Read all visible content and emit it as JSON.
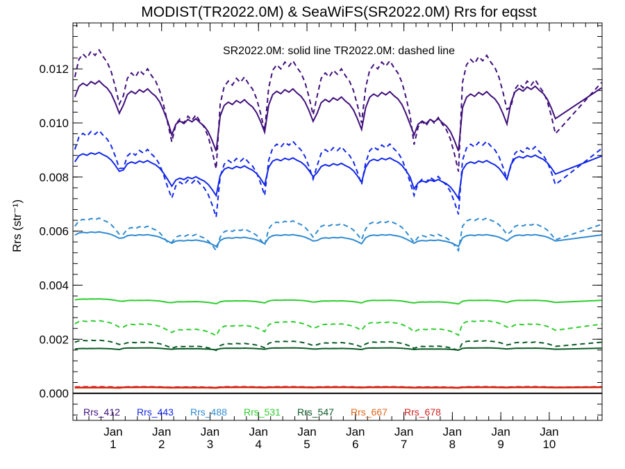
{
  "chart_data": {
    "type": "line",
    "title": "MODIST(TR2022.0M) & SeaWiFS(SR2022.0M)  Rrs for eqsst",
    "annotation": "SR2022.0M: solid line   TR2022.0M: dashed line",
    "ylabel": "Rrs (str⁻¹)",
    "ylim": [
      -0.001,
      0.0137
    ],
    "yticks": [
      "0.000",
      "0.002",
      "0.004",
      "0.006",
      "0.008",
      "0.010",
      "0.012"
    ],
    "ytick_values": [
      0.0,
      0.002,
      0.004,
      0.006,
      0.008,
      0.01,
      0.012
    ],
    "xlim": [
      0,
      10.92
    ],
    "xtick_top": [
      "Jan",
      "Jan",
      "Jan",
      "Jan",
      "Jan",
      "Jan",
      "Jan",
      "Jan",
      "Jan",
      "Jan"
    ],
    "xtick_bottom": [
      "1",
      "2",
      "3",
      "4",
      "5",
      "6",
      "7",
      "8",
      "9",
      "10"
    ],
    "xtick_values": [
      0.83,
      1.83,
      2.83,
      3.83,
      4.83,
      5.83,
      6.83,
      7.83,
      8.83,
      9.83
    ],
    "zero_line": 0.0,
    "line_styles": {
      "SR2022.0M": "solid",
      "TR2022.0M": "dashed"
    },
    "series": [
      {
        "name": "Rrs_412",
        "color": "#3f0f7a",
        "solid_values": [
          0.0112,
          0.0109,
          0.0098,
          0.0105,
          0.0109,
          0.0106,
          0.0108,
          0.0098,
          0.0108,
          0.011
        ],
        "dashed_values": [
          0.0121,
          0.0114,
          0.0097,
          0.0111,
          0.0117,
          0.0114,
          0.0117,
          0.0096,
          0.0119,
          0.011
        ]
      },
      {
        "name": "Rrs_443",
        "color": "#1126e8",
        "solid_values": [
          0.0087,
          0.0084,
          0.0078,
          0.0082,
          0.0085,
          0.0083,
          0.0085,
          0.0077,
          0.0084,
          0.0086
        ],
        "dashed_values": [
          0.0093,
          0.0086,
          0.0075,
          0.0083,
          0.0089,
          0.0087,
          0.0088,
          0.0076,
          0.0089,
          0.0087
        ]
      },
      {
        "name": "Rrs_488",
        "color": "#2f8ad0",
        "solid_values": [
          0.0059,
          0.0058,
          0.0056,
          0.0057,
          0.0058,
          0.0057,
          0.0058,
          0.0056,
          0.0058,
          0.0058
        ],
        "dashed_values": [
          0.0063,
          0.006,
          0.0057,
          0.0059,
          0.0062,
          0.0061,
          0.0062,
          0.0057,
          0.0063,
          0.0061
        ]
      },
      {
        "name": "Rrs_531",
        "color": "#2fcc2f",
        "solid_values": [
          0.00347,
          0.00342,
          0.00337,
          0.0034,
          0.00343,
          0.0034,
          0.00342,
          0.00336,
          0.00342,
          0.00342
        ],
        "dashed_values": [
          0.00262,
          0.0025,
          0.0023,
          0.00245,
          0.00258,
          0.0025,
          0.00257,
          0.00232,
          0.00262,
          0.0025
        ]
      },
      {
        "name": "Rrs_547",
        "color": "#0b5a26",
        "solid_values": [
          0.00165,
          0.00167,
          0.00164,
          0.00166,
          0.00167,
          0.00165,
          0.00167,
          0.00163,
          0.00167,
          0.00166
        ],
        "dashed_values": [
          0.00192,
          0.00185,
          0.0017,
          0.0018,
          0.00188,
          0.00183,
          0.00186,
          0.0017,
          0.0019,
          0.00185
        ]
      },
      {
        "name": "Rrs_667",
        "color": "#e4661a",
        "solid_values": [
          0.0002,
          0.00021,
          0.0002,
          0.00021,
          0.00021,
          0.00021,
          0.00021,
          0.0002,
          0.00021,
          0.00021
        ],
        "dashed_values": [
          0.00022,
          0.00022,
          0.00021,
          0.00022,
          0.00022,
          0.00022,
          0.00022,
          0.00021,
          0.00022,
          0.00022
        ]
      },
      {
        "name": "Rrs_678",
        "color": "#d11f1f",
        "solid_values": [
          0.00022,
          0.00023,
          0.00022,
          0.00023,
          0.00023,
          0.00023,
          0.00023,
          0.00022,
          0.00023,
          0.00023
        ],
        "dashed_values": [
          0.00024,
          0.00024,
          0.00023,
          0.00024,
          0.00024,
          0.00024,
          0.00024,
          0.00023,
          0.00024,
          0.00024
        ]
      }
    ],
    "legend_placement": "bottom-left inside plot",
    "grid": false
  }
}
